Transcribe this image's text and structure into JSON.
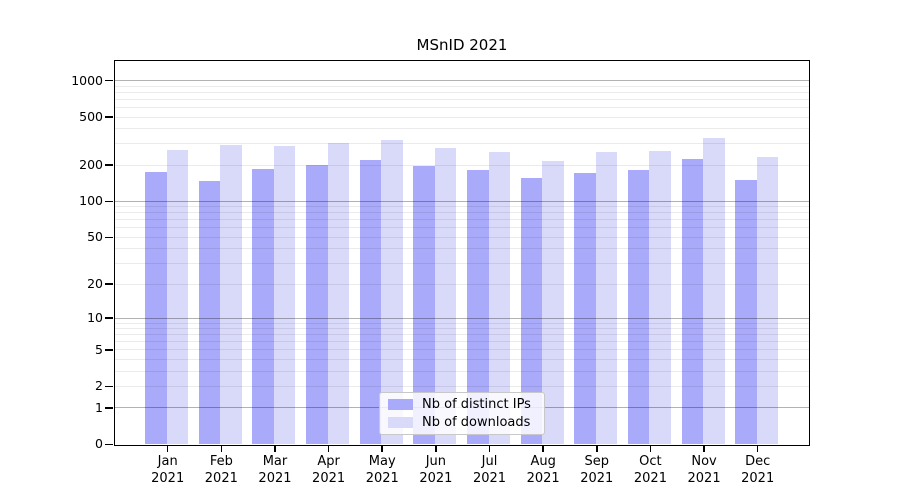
{
  "title": "MSnID 2021",
  "chart_data": {
    "type": "bar",
    "title": "MSnID 2021",
    "y_scale": "log1p",
    "months": [
      "Jan",
      "Feb",
      "Mar",
      "Apr",
      "May",
      "Jun",
      "Jul",
      "Aug",
      "Sep",
      "Oct",
      "Nov",
      "Dec"
    ],
    "year": "2021",
    "series": [
      {
        "name": "Nb of distinct IPs",
        "color": "#aaaafa",
        "values": [
          175,
          145,
          185,
          200,
          218,
          195,
          180,
          155,
          170,
          180,
          222,
          150
        ]
      },
      {
        "name": "Nb of downloads",
        "color": "#d9d9fa",
        "values": [
          265,
          290,
          285,
          300,
          318,
          275,
          255,
          215,
          255,
          260,
          332,
          230
        ]
      }
    ],
    "y_tick_labels": [
      "0",
      "1",
      "2",
      "5",
      "10",
      "20",
      "50",
      "100",
      "200",
      "500",
      "1000"
    ],
    "y_tick_values": [
      0,
      1,
      2,
      5,
      10,
      20,
      50,
      100,
      200,
      500,
      1000
    ],
    "ylim": [
      0,
      1480
    ],
    "grid": true,
    "legend_position": "bottom-center",
    "grid_major_color": "rgba(0,0,0,0.30)",
    "grid_minor_color": "rgba(0,0,0,0.08)"
  }
}
